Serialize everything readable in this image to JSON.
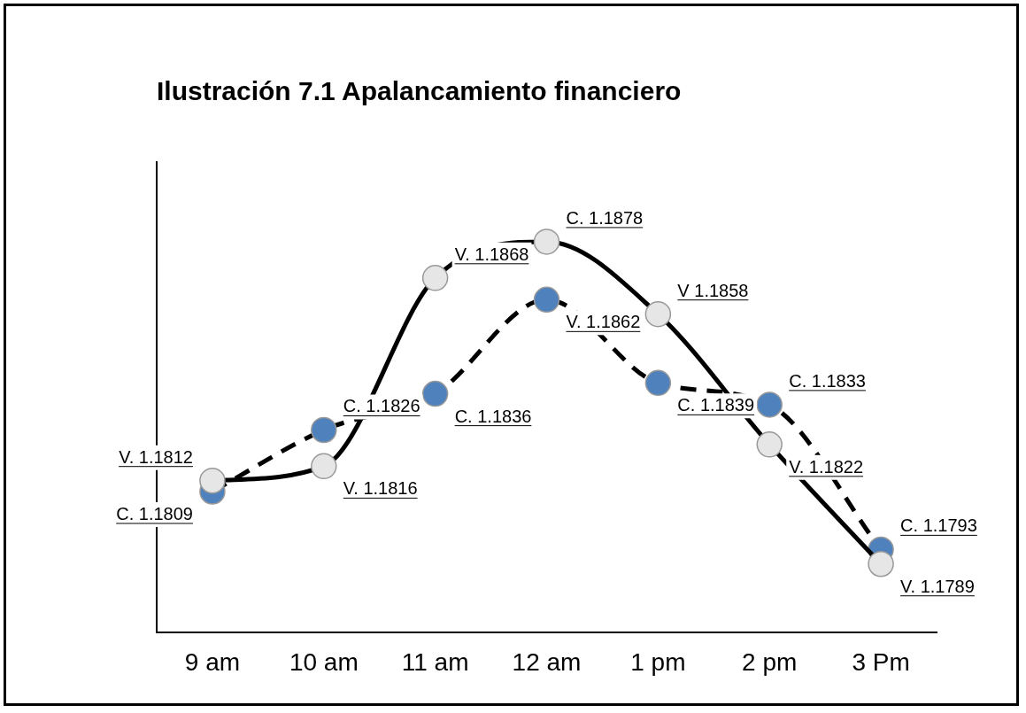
{
  "chart_data": {
    "type": "line",
    "title": "Ilustración 7.1 Apalancamiento financiero",
    "categories": [
      "9 am",
      "10 am",
      "11 am",
      "12 am",
      "1 pm",
      "2 pm",
      "3 Pm"
    ],
    "ylim": [
      1.177,
      1.19
    ],
    "tick_labels": "x",
    "grid": false,
    "legend": false,
    "marker": "circle",
    "series": [
      {
        "color": "#e6e6e6",
        "line_style": "solid",
        "values": [
          1.1812,
          1.1816,
          1.1868,
          1.1878,
          1.1858,
          1.1822,
          1.1789
        ],
        "value_labels": [
          "V. 1.1812",
          "V. 1.1816",
          "V. 1.1868",
          "C. 1.1878",
          "V 1.1858",
          "V. 1.1822",
          "V. 1.1789"
        ]
      },
      {
        "color": "#4f81bd",
        "line_style": "dashed",
        "values": [
          1.1809,
          1.1826,
          1.1836,
          1.1862,
          1.1839,
          1.1833,
          1.1793
        ],
        "value_labels": [
          "C. 1.1809",
          "C. 1.1826",
          "C. 1.1836",
          "V. 1.1862",
          "C. 1.1839",
          "C. 1.1833",
          "C. 1.1793"
        ]
      }
    ]
  }
}
